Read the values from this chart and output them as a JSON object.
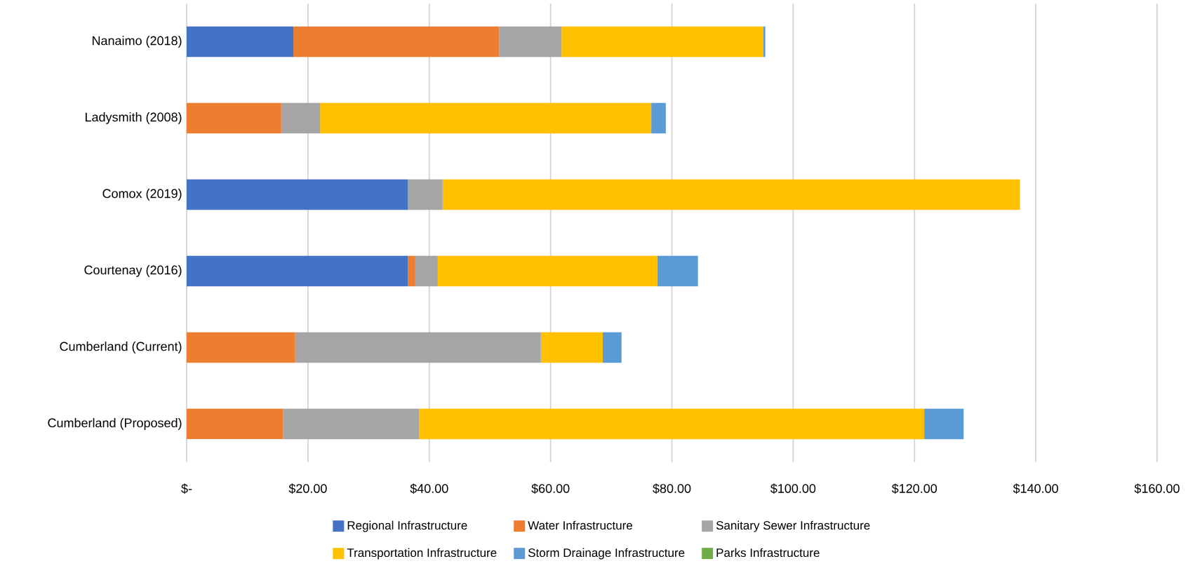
{
  "chart_data": {
    "type": "bar",
    "orientation": "horizontal",
    "stacked": true,
    "categories": [
      "Nanaimo (2018)",
      "Ladysmith (2008)",
      "Comox (2019)",
      "Courtenay (2016)",
      "Cumberland (Current)",
      "Cumberland (Proposed)"
    ],
    "series": [
      {
        "name": "Regional Infrastructure",
        "color": "#4472c4",
        "values": [
          17.6,
          0,
          36.5,
          36.5,
          0,
          0
        ]
      },
      {
        "name": "Water Infrastructure",
        "color": "#ed7d31",
        "values": [
          33.9,
          15.6,
          0,
          1.2,
          17.9,
          15.9
        ]
      },
      {
        "name": "Sanitary Sewer Infrastructure",
        "color": "#a5a5a5",
        "values": [
          10.3,
          6.4,
          5.7,
          3.7,
          40.5,
          22.4
        ]
      },
      {
        "name": "Transportation Infrastructure",
        "color": "#ffc000",
        "values": [
          33.3,
          54.6,
          95.2,
          36.2,
          10.2,
          83.3
        ]
      },
      {
        "name": "Storm Drainage Infrastructure",
        "color": "#5b9bd5",
        "values": [
          0.3,
          2.4,
          0,
          6.7,
          3.1,
          6.5
        ]
      },
      {
        "name": "Parks Infrastructure",
        "color": "#70ad47",
        "values": [
          0,
          0,
          0,
          0,
          0,
          0
        ]
      }
    ],
    "xlim": [
      0,
      160
    ],
    "xticks": [
      {
        "value": 0,
        "label": "$-"
      },
      {
        "value": 20,
        "label": "$20.00"
      },
      {
        "value": 40,
        "label": "$40.00"
      },
      {
        "value": 60,
        "label": "$60.00"
      },
      {
        "value": 80,
        "label": "$80.00"
      },
      {
        "value": 100,
        "label": "$100.00"
      },
      {
        "value": 120,
        "label": "$120.00"
      },
      {
        "value": 140,
        "label": "$140.00"
      },
      {
        "value": 160,
        "label": "$160.00"
      }
    ],
    "grid": "x",
    "legend": "bottom"
  }
}
